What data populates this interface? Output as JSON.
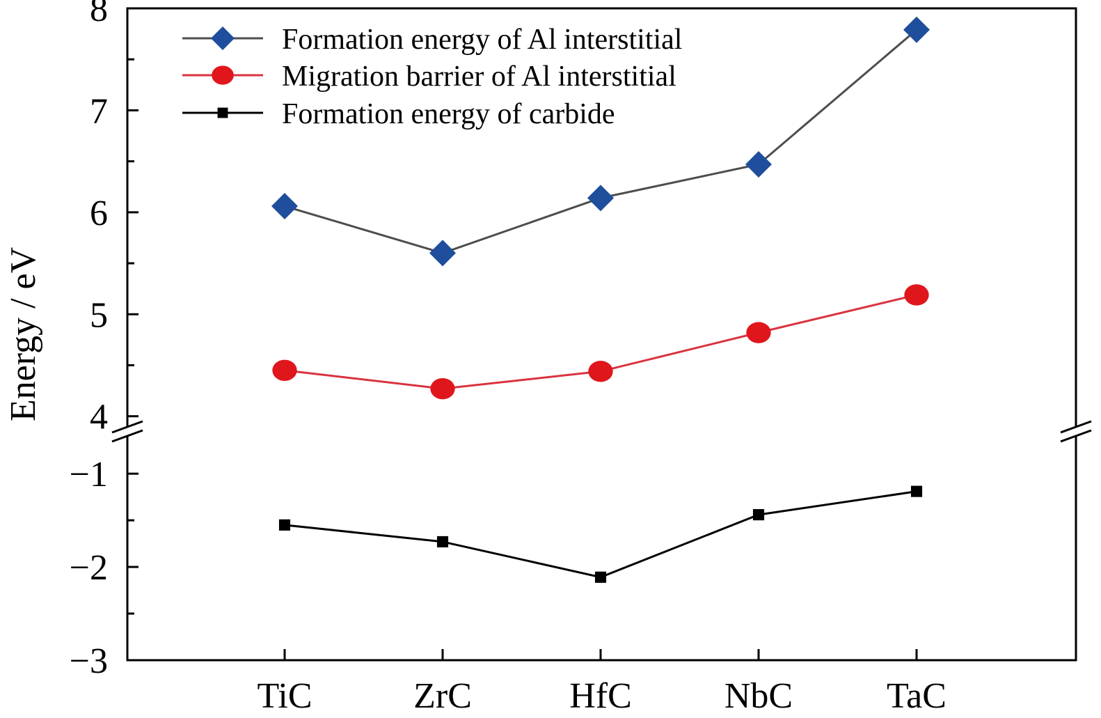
{
  "chart_data": {
    "type": "line",
    "categories": [
      "TiC",
      "ZrC",
      "HfC",
      "NbC",
      "TaC"
    ],
    "ylabel": "Energy / eV",
    "xlabel": "",
    "axis_break": true,
    "upper_axis": {
      "ylim": [
        3.95,
        8
      ],
      "ticks": [
        4,
        5,
        6,
        7,
        8
      ],
      "tick_labels": [
        "4",
        "5",
        "6",
        "7",
        "8"
      ]
    },
    "lower_axis": {
      "ylim": [
        -3,
        -0.7
      ],
      "ticks": [
        -1,
        -2,
        -3
      ],
      "tick_labels": [
        "−1",
        "−2",
        "−3"
      ]
    },
    "legend_position": "top-left",
    "series": [
      {
        "name": "Formation energy of Al interstitial",
        "values": [
          6.06,
          5.6,
          6.14,
          6.47,
          7.79
        ],
        "axis": "upper",
        "marker": "diamond",
        "color": "#4d4d4d",
        "marker_color": "#1f4e9c"
      },
      {
        "name": "Migration barrier of Al interstitial",
        "values": [
          4.45,
          4.27,
          4.44,
          4.82,
          5.19
        ],
        "axis": "upper",
        "marker": "circle",
        "color": "#d9333f",
        "marker_color": "#e0161d"
      },
      {
        "name": "Formation energy of carbide",
        "values": [
          -1.55,
          -1.73,
          -2.11,
          -1.44,
          -1.19
        ],
        "axis": "lower",
        "marker": "square",
        "color": "#000000",
        "marker_color": "#000000"
      }
    ]
  }
}
